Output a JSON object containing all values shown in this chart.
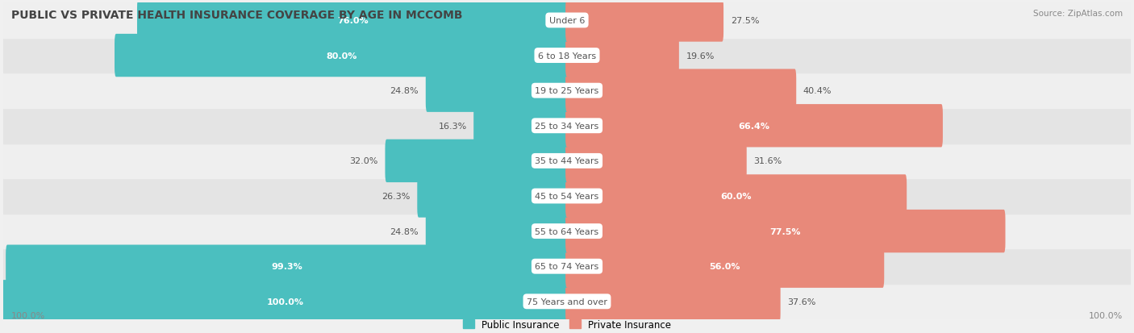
{
  "title": "PUBLIC VS PRIVATE HEALTH INSURANCE COVERAGE BY AGE IN MCCOMB",
  "source": "Source: ZipAtlas.com",
  "categories": [
    "Under 6",
    "6 to 18 Years",
    "19 to 25 Years",
    "25 to 34 Years",
    "35 to 44 Years",
    "45 to 54 Years",
    "55 to 64 Years",
    "65 to 74 Years",
    "75 Years and over"
  ],
  "public_values": [
    76.0,
    80.0,
    24.8,
    16.3,
    32.0,
    26.3,
    24.8,
    99.3,
    100.0
  ],
  "private_values": [
    27.5,
    19.6,
    40.4,
    66.4,
    31.6,
    60.0,
    77.5,
    56.0,
    37.6
  ],
  "public_color": "#4bbfbf",
  "private_color": "#e8897a",
  "row_bg_odd": "#efefef",
  "row_bg_even": "#e4e4e4",
  "title_fontsize": 10,
  "label_fontsize": 8,
  "value_fontsize": 8,
  "legend_public": "Public Insurance",
  "legend_private": "Private Insurance",
  "axis_label_left": "100.0%",
  "axis_label_right": "100.0%",
  "max_val": 100
}
